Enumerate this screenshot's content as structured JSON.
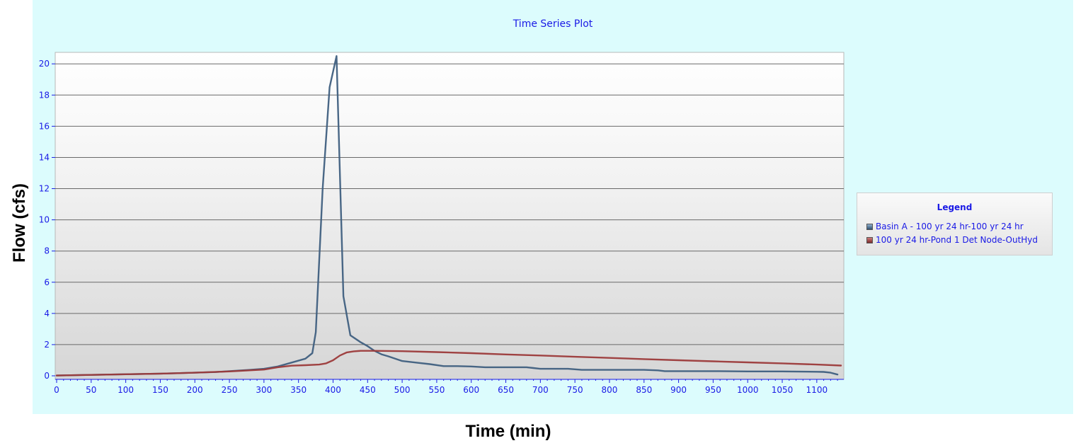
{
  "chart_data": {
    "type": "line",
    "title": "Time Series Plot",
    "xlabel": "Time (min)",
    "ylabel": "Flow (cfs)",
    "xlim": [
      0,
      1135
    ],
    "ylim": [
      0,
      20.6
    ],
    "xticks": [
      0,
      50,
      100,
      150,
      200,
      250,
      300,
      350,
      400,
      450,
      500,
      550,
      600,
      650,
      700,
      750,
      800,
      850,
      900,
      950,
      1000,
      1050,
      1100
    ],
    "yticks": [
      0,
      2,
      4,
      6,
      8,
      10,
      12,
      14,
      16,
      18,
      20
    ],
    "grid": "horizontal",
    "legend_title": "Legend",
    "legend_position": "right",
    "series": [
      {
        "name": "Basin A - 100 yr 24 hr-100 yr 24 hr",
        "color": "#3f5f7f",
        "x": [
          0,
          50,
          100,
          150,
          200,
          230,
          250,
          280,
          300,
          320,
          340,
          360,
          370,
          375,
          385,
          395,
          405,
          415,
          425,
          440,
          450,
          460,
          470,
          480,
          500,
          520,
          540,
          560,
          580,
          600,
          620,
          650,
          680,
          690,
          700,
          720,
          740,
          760,
          800,
          850,
          870,
          880,
          900,
          950,
          1000,
          1050,
          1100,
          1110,
          1120,
          1130
        ],
        "y": [
          0.02,
          0.06,
          0.1,
          0.14,
          0.2,
          0.24,
          0.3,
          0.38,
          0.45,
          0.6,
          0.85,
          1.1,
          1.45,
          2.8,
          12.0,
          18.5,
          20.5,
          5.1,
          2.6,
          2.15,
          1.9,
          1.6,
          1.38,
          1.25,
          0.95,
          0.85,
          0.75,
          0.62,
          0.62,
          0.6,
          0.55,
          0.55,
          0.55,
          0.5,
          0.45,
          0.45,
          0.45,
          0.38,
          0.38,
          0.38,
          0.35,
          0.3,
          0.3,
          0.3,
          0.28,
          0.28,
          0.26,
          0.25,
          0.2,
          0.08
        ]
      },
      {
        "name": "100 yr 24 hr-Pond 1 Det Node-OutHyd",
        "color": "#9c3a3a",
        "x": [
          0,
          50,
          100,
          150,
          200,
          250,
          300,
          320,
          340,
          360,
          380,
          390,
          400,
          410,
          420,
          430,
          440,
          450,
          460,
          500,
          550,
          600,
          650,
          700,
          750,
          800,
          850,
          900,
          950,
          1000,
          1050,
          1100,
          1135
        ],
        "y": [
          0.02,
          0.06,
          0.1,
          0.14,
          0.2,
          0.28,
          0.4,
          0.55,
          0.65,
          0.68,
          0.72,
          0.8,
          1.0,
          1.3,
          1.5,
          1.57,
          1.6,
          1.6,
          1.6,
          1.58,
          1.52,
          1.45,
          1.37,
          1.3,
          1.22,
          1.15,
          1.07,
          1.0,
          0.93,
          0.86,
          0.8,
          0.72,
          0.66
        ]
      }
    ]
  }
}
